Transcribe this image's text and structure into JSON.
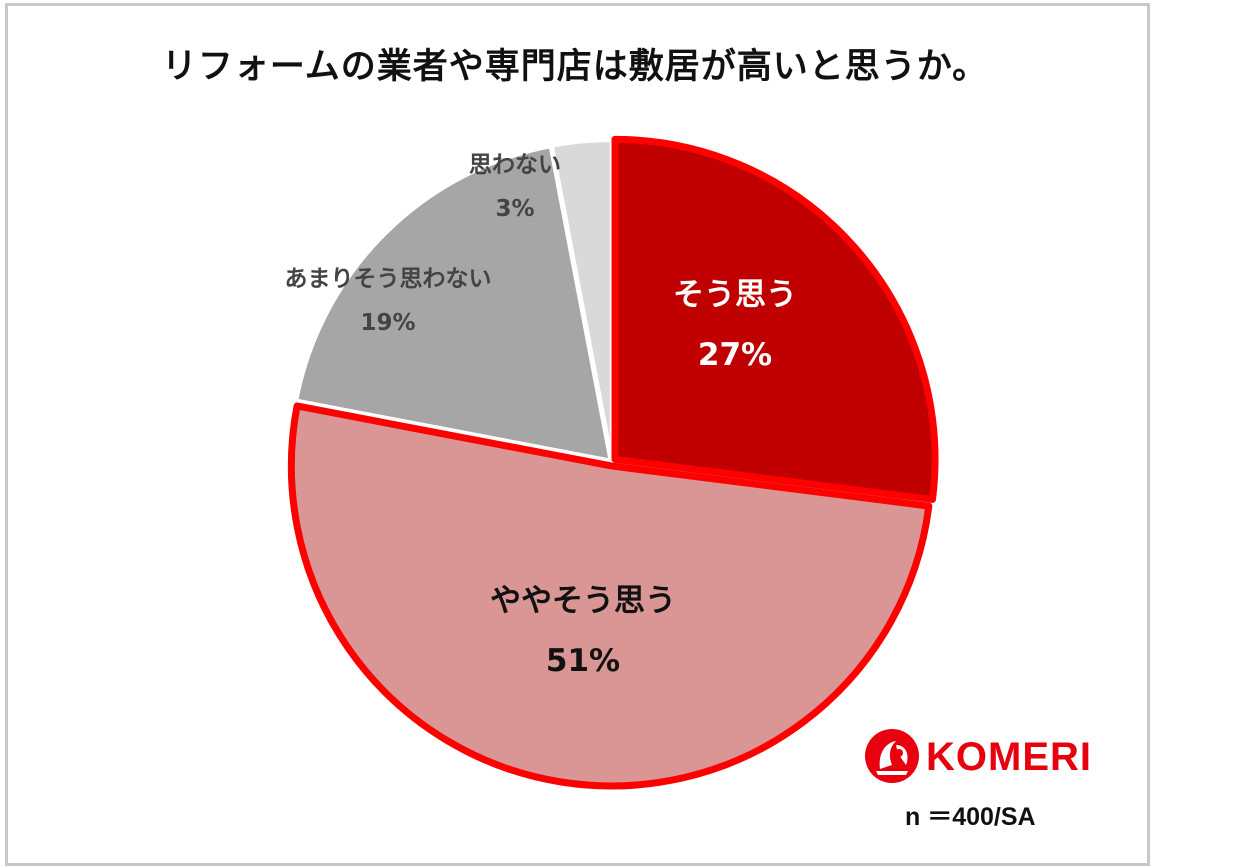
{
  "chart_data": {
    "type": "pie",
    "title": "リフォームの業者や専門店は敷居が高いと思うか。",
    "slices": [
      {
        "label": "そう思う",
        "value": 27,
        "value_label": "27%",
        "color": "#c00000",
        "highlight": true
      },
      {
        "label": "ややそう思う",
        "value": 51,
        "value_label": "51%",
        "color": "#d99694",
        "highlight": true
      },
      {
        "label": "あまりそう思わない",
        "value": 19,
        "value_label": "19%",
        "color": "#a6a6a6",
        "highlight": false
      },
      {
        "label": "思わない",
        "value": 3,
        "value_label": "3%",
        "color": "#d9d9d9",
        "highlight": false
      }
    ],
    "highlight_border_color": "#ff0000"
  },
  "logo": {
    "text": "KOMERI"
  },
  "sample_note": "n ＝400/SA"
}
